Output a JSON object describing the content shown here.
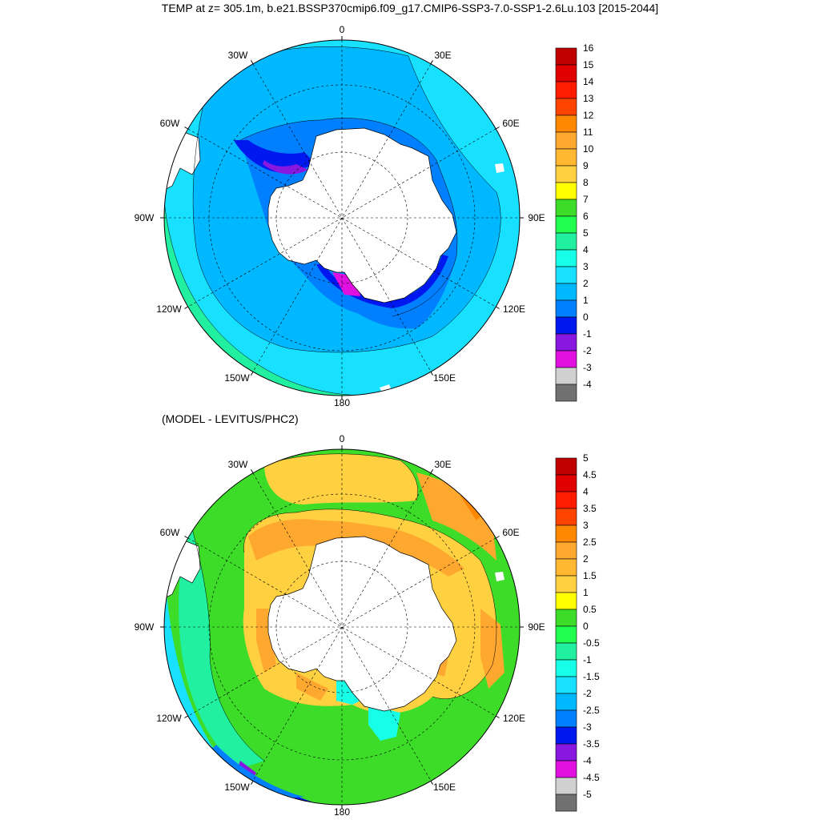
{
  "title": "TEMP at z= 305.1m, b.e21.BSSP370cmip6.f09_g17.CMIP6-SSP3-7.0-SSP1-2.6Lu.103 [2015-2044]",
  "subtitle": "(MODEL - LEVITUS/PHC2)",
  "map_labels": {
    "lon_0": "0",
    "lon_30e": "30E",
    "lon_60e": "60E",
    "lon_90e": "90E",
    "lon_120e": "120E",
    "lon_150e": "150E",
    "lon_180": "180",
    "lon_150w": "150W",
    "lon_120w": "120W",
    "lon_90w": "90W",
    "lon_60w": "60W",
    "lon_30w": "30W"
  },
  "chart_data": [
    {
      "type": "heatmap",
      "projection": "south-polar-stereographic",
      "title": "TEMP at z= 305.1m, b.e21.BSSP370cmip6.f09_g17.CMIP6-SSP3-7.0-SSP1-2.6Lu.103 [2015-2044]",
      "colorbar_levels": [
        "16",
        "15",
        "14",
        "13",
        "12",
        "11",
        "10",
        "9",
        "8",
        "7",
        "6",
        "5",
        "4",
        "3",
        "2",
        "1",
        "0",
        "-1",
        "-2",
        "-3",
        "-4"
      ],
      "colors": [
        "#c00000",
        "#e00000",
        "#ff1c00",
        "#ff4400",
        "#ff8800",
        "#ffa830",
        "#ffb830",
        "#ffd040",
        "#ffff00",
        "#3cdc28",
        "#20ff50",
        "#20f0a0",
        "#18ffe8",
        "#18e0ff",
        "#00b8ff",
        "#0080ff",
        "#0018f0",
        "#8818e0",
        "#e010e0",
        "#d0d0d0",
        "#707070"
      ]
    },
    {
      "type": "heatmap",
      "projection": "south-polar-stereographic",
      "title": "(MODEL - LEVITUS/PHC2)",
      "colorbar_levels": [
        "5",
        "4.5",
        "4",
        "3.5",
        "3",
        "2.5",
        "2",
        "1.5",
        "1",
        "0.5",
        "0",
        "-0.5",
        "-1",
        "-1.5",
        "-2",
        "-2.5",
        "-3",
        "-3.5",
        "-4",
        "-4.5",
        "-5"
      ],
      "colors": [
        "#c00000",
        "#e00000",
        "#ff1c00",
        "#ff4400",
        "#ff8800",
        "#ffa830",
        "#ffb830",
        "#ffd040",
        "#ffff00",
        "#3cdc28",
        "#20ff50",
        "#20f0a0",
        "#18ffe8",
        "#18e0ff",
        "#00b8ff",
        "#0080ff",
        "#0018f0",
        "#8818e0",
        "#e010e0",
        "#d0d0d0",
        "#707070"
      ]
    }
  ]
}
